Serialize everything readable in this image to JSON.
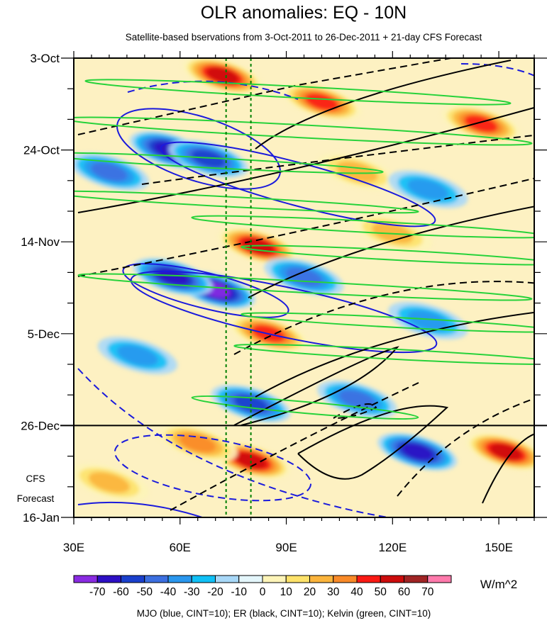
{
  "chart_data": {
    "type": "heatmap",
    "title": "OLR anomalies: EQ - 10N",
    "subtitle": "Satellite-based bservations from 3-Oct-2011 to 26-Dec-2011 + 21-day CFS Forecast",
    "x_axis": {
      "range": [
        30,
        160
      ],
      "ticks": [
        {
          "lon": 30,
          "label": "30E"
        },
        {
          "lon": 60,
          "label": "60E"
        },
        {
          "lon": 90,
          "label": "90E"
        },
        {
          "lon": 120,
          "label": "120E"
        },
        {
          "lon": 150,
          "label": "150E"
        }
      ]
    },
    "y_axis": {
      "range_days": [
        0,
        105
      ],
      "direction": "time increases downward",
      "ticks": [
        {
          "day": 0,
          "label": "3-Oct"
        },
        {
          "day": 21,
          "label": "24-Oct"
        },
        {
          "day": 42,
          "label": "14-Nov"
        },
        {
          "day": 63,
          "label": "5-Dec"
        },
        {
          "day": 84,
          "label": "26-Dec"
        },
        {
          "day": 105,
          "label": "16-Jan"
        }
      ],
      "forecast_start_day": 84
    },
    "forecast_label": [
      "CFS",
      "Forecast"
    ],
    "reference_longitudes": [
      73,
      80
    ],
    "colorbar": {
      "units": "W/m^2",
      "levels": [
        -70,
        -60,
        -50,
        -40,
        -30,
        -20,
        -10,
        0,
        10,
        20,
        30,
        40,
        50,
        60,
        70
      ],
      "colors": [
        "#8a2be2",
        "#2d0fc4",
        "#1a3fcc",
        "#3c6fe0",
        "#2a97ee",
        "#10c0f6",
        "#a8d8f8",
        "#e4f6fb",
        "#fdf4b8",
        "#fde26a",
        "#fbb43c",
        "#f98a28",
        "#fa1a14",
        "#cc0c0c",
        "#a02424",
        "#ff7aac"
      ]
    },
    "anomaly_centers": [
      {
        "lon": 72,
        "day": 4,
        "value": 55
      },
      {
        "lon": 100,
        "day": 10,
        "value": 45
      },
      {
        "lon": 145,
        "day": 15,
        "value": 45
      },
      {
        "lon": 57,
        "day": 21,
        "value": -60
      },
      {
        "lon": 68,
        "day": 23,
        "value": -45
      },
      {
        "lon": 40,
        "day": 26,
        "value": -35
      },
      {
        "lon": 110,
        "day": 26,
        "value": 30
      },
      {
        "lon": 130,
        "day": 30,
        "value": -30
      },
      {
        "lon": 82,
        "day": 43,
        "value": 55
      },
      {
        "lon": 120,
        "day": 40,
        "value": 30
      },
      {
        "lon": 70,
        "day": 53,
        "value": -70
      },
      {
        "lon": 58,
        "day": 50,
        "value": -55
      },
      {
        "lon": 95,
        "day": 50,
        "value": -35
      },
      {
        "lon": 85,
        "day": 63,
        "value": 50
      },
      {
        "lon": 130,
        "day": 60,
        "value": -25
      },
      {
        "lon": 48,
        "day": 68,
        "value": -30
      },
      {
        "lon": 80,
        "day": 79,
        "value": -45
      },
      {
        "lon": 110,
        "day": 78,
        "value": -40
      },
      {
        "lon": 127,
        "day": 90,
        "value": -55
      },
      {
        "lon": 80,
        "day": 92,
        "value": 60
      },
      {
        "lon": 65,
        "day": 88,
        "value": 35
      },
      {
        "lon": 152,
        "day": 90,
        "value": 55
      },
      {
        "lon": 40,
        "day": 97,
        "value": 25
      }
    ],
    "contours": {
      "MJO": {
        "color": "blue",
        "cint": 10
      },
      "ER": {
        "color": "black",
        "cint": 10
      },
      "Kelvin": {
        "color": "green",
        "cint": 10
      }
    },
    "footer": "MJO (blue, CINT=10); ER (black, CINT=10); Kelvin (green, CINT=10)"
  }
}
